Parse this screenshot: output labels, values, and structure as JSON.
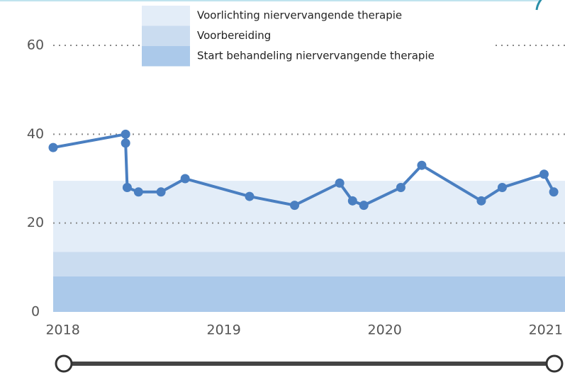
{
  "chart_data": {
    "type": "line",
    "x": [
      2017.94,
      2018.39,
      2018.39,
      2018.4,
      2018.47,
      2018.61,
      2018.76,
      2019.16,
      2019.44,
      2019.72,
      2019.8,
      2019.87,
      2020.1,
      2020.23,
      2020.6,
      2020.73,
      2020.99,
      2021.05
    ],
    "series": [
      {
        "color": "#4a7fc1",
        "values": [
          37,
          40,
          38,
          28,
          27,
          27,
          30,
          26,
          24,
          29,
          25,
          24,
          28,
          33,
          25,
          28,
          31,
          27
        ]
      }
    ],
    "bands": [
      {
        "name": "Voorlichting niervervangende therapie",
        "color": "#e3edf8",
        "from": 13.5,
        "to": 29.5
      },
      {
        "name": "Voorbereiding",
        "color": "#cadcf0",
        "from": 8,
        "to": 13.5
      },
      {
        "name": "Start behandeling niervervangende therapie",
        "color": "#abc9ea",
        "from": 0,
        "to": 8
      }
    ],
    "xlim": [
      2017.94,
      2021.12
    ],
    "xticks": [
      2018,
      2019,
      2020,
      2021
    ],
    "ylim": [
      0,
      60
    ],
    "yticks": [
      0,
      20,
      40,
      60
    ],
    "grid": true
  }
}
